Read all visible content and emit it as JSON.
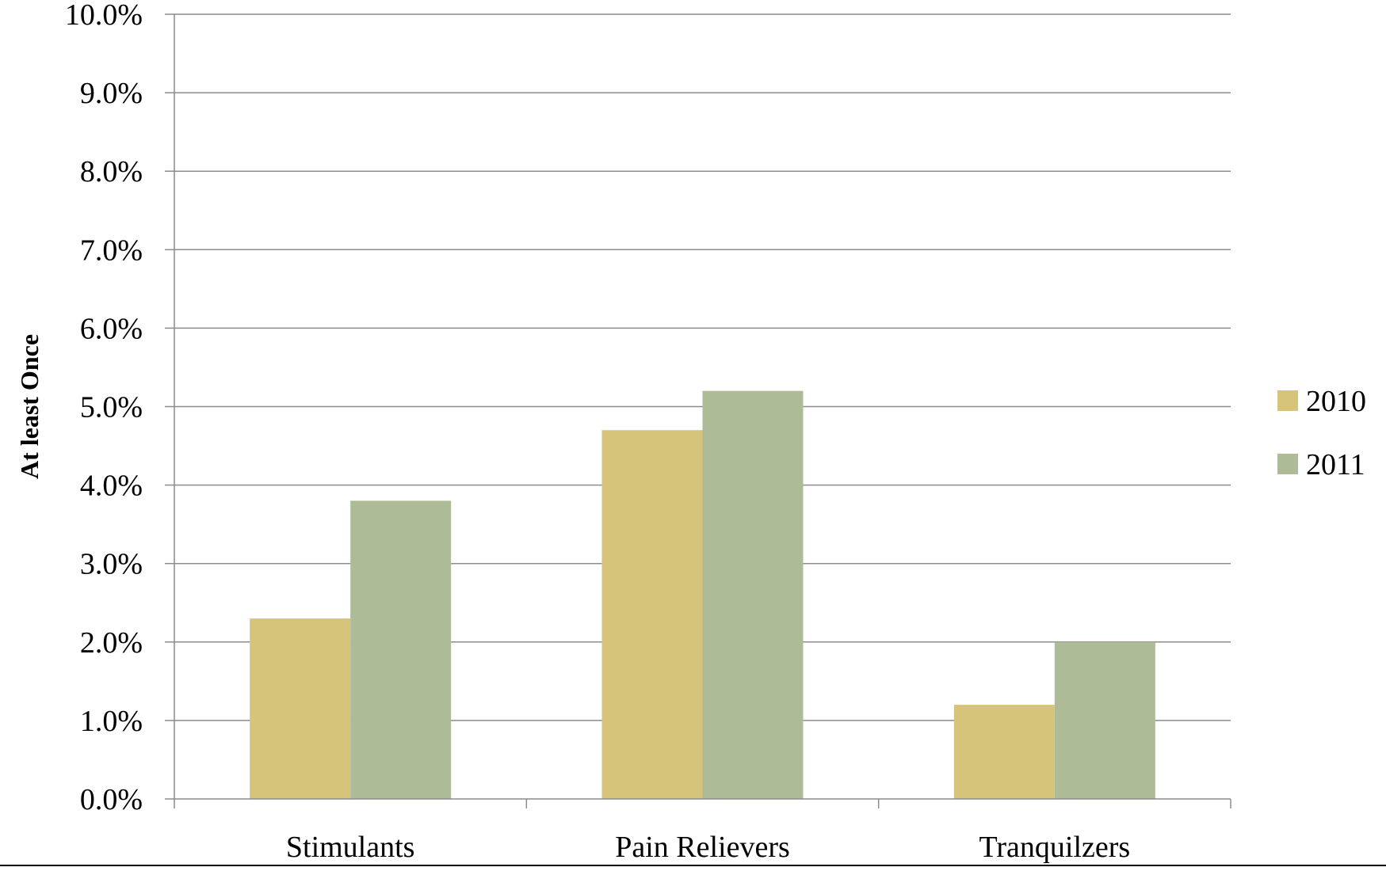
{
  "chart_data": {
    "type": "bar",
    "title": "",
    "xlabel": "",
    "ylabel": "At least Once",
    "categories": [
      "Stimulants",
      "Pain Relievers",
      "Tranquilzers"
    ],
    "series": [
      {
        "name": "2010",
        "values": [
          2.3,
          4.7,
          1.2
        ],
        "color": "#d7c47b"
      },
      {
        "name": "2011",
        "values": [
          3.8,
          5.2,
          2.0
        ],
        "color": "#adbc96"
      }
    ],
    "ylim": [
      0,
      10
    ],
    "y_ticks": [
      "0.0%",
      "1.0%",
      "2.0%",
      "3.0%",
      "4.0%",
      "5.0%",
      "6.0%",
      "7.0%",
      "8.0%",
      "9.0%",
      "10.0%"
    ],
    "grid": true,
    "legend_position": "right"
  }
}
